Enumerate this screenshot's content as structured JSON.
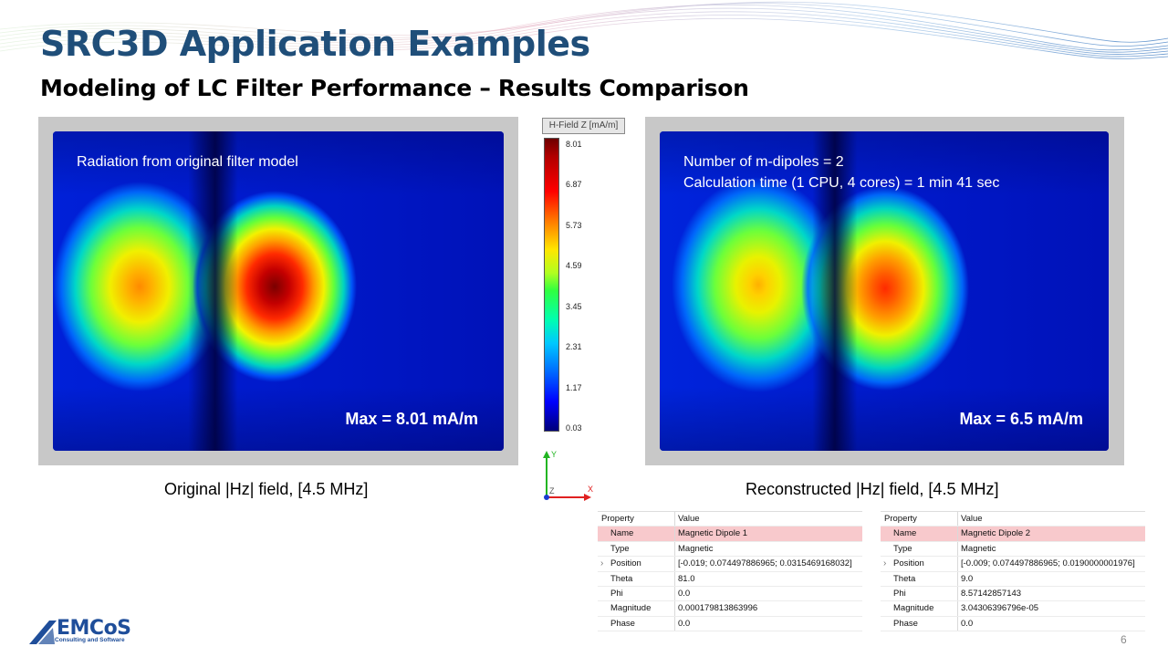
{
  "slide": {
    "title": "SRC3D Application Examples",
    "subtitle": "Modeling of LC Filter Performance – Results Comparison",
    "page_number": "6",
    "accent_color": "#1f4e79"
  },
  "left_panel": {
    "overlay_text": "Radiation from original filter model",
    "max_label": "Max = 8.01 mA/m",
    "caption": "Original |Hz| field, [4.5 MHz]"
  },
  "right_panel": {
    "overlay_line1": "Number of m-dipoles = 2",
    "overlay_line2": "Calculation time (1 CPU, 4 cores) = 1 min 41 sec",
    "max_label": "Max = 6.5 mA/m",
    "caption": "Reconstructed |Hz| field, [4.5 MHz]"
  },
  "legend": {
    "title": "H-Field Z [mA/m]",
    "ticks": [
      "8.01",
      "6.87",
      "5.73",
      "4.59",
      "3.45",
      "2.31",
      "1.17",
      "0.03"
    ]
  },
  "axes": {
    "y_label": "Y",
    "z_label": "Z",
    "x_label": "X"
  },
  "property_tables": [
    {
      "header": {
        "property": "Property",
        "value": "Value"
      },
      "rows": [
        {
          "property": "Name",
          "value": "Magnetic Dipole 1",
          "selected": true
        },
        {
          "property": "Type",
          "value": "Magnetic"
        },
        {
          "property": "Position",
          "value": "[-0.019; 0.074497886965; 0.0315469168032]",
          "expandable": true
        },
        {
          "property": "Theta",
          "value": "81.0"
        },
        {
          "property": "Phi",
          "value": "0.0"
        },
        {
          "property": "Magnitude",
          "value": "0.000179813863996"
        },
        {
          "property": "Phase",
          "value": "0.0"
        }
      ]
    },
    {
      "header": {
        "property": "Property",
        "value": "Value"
      },
      "rows": [
        {
          "property": "Name",
          "value": "Magnetic Dipole 2",
          "selected": true
        },
        {
          "property": "Type",
          "value": "Magnetic"
        },
        {
          "property": "Position",
          "value": "[-0.009; 0.074497886965; 0.0190000001976]",
          "expandable": true
        },
        {
          "property": "Theta",
          "value": "9.0"
        },
        {
          "property": "Phi",
          "value": "8.57142857143"
        },
        {
          "property": "Magnitude",
          "value": "3.04306396796e-05"
        },
        {
          "property": "Phase",
          "value": "0.0"
        }
      ]
    }
  ],
  "logo": {
    "name": "EMCoS",
    "tagline": "Consulting and Software",
    "color": "#1f4e9a"
  }
}
